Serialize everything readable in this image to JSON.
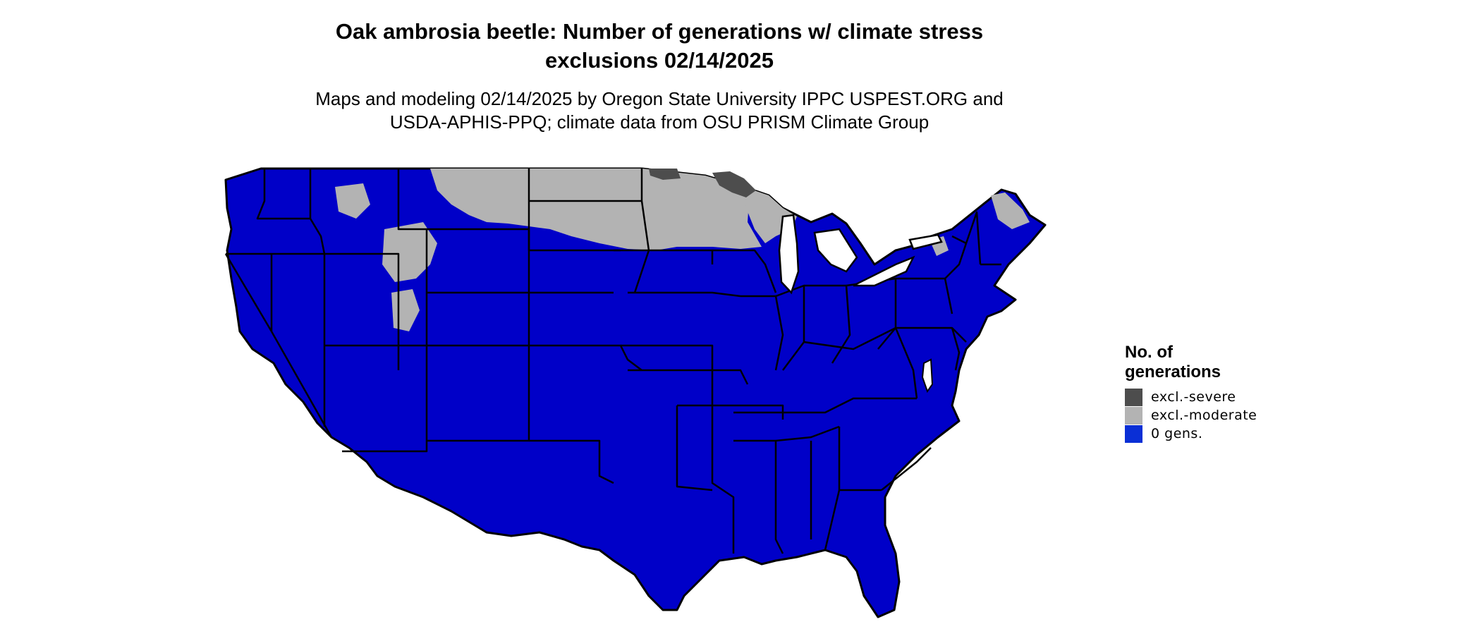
{
  "header": {
    "title_line1": "Oak ambrosia beetle: Number of generations w/ climate stress",
    "title_line2": "exclusions 02/14/2025",
    "subtitle_line1": "Maps and modeling 02/14/2025 by Oregon State University IPPC USPEST.ORG and",
    "subtitle_line2": "USDA-APHIS-PPQ; climate data from OSU PRISM Climate Group"
  },
  "map": {
    "region": "contiguous-united-states",
    "land_color": "#0000c8",
    "border_color": "#000000",
    "zones": [
      {
        "category": "excl.-severe",
        "color": "#4d4d4d",
        "areas": [
          "northern-minnesota-arrowhead",
          "northern-minnesota-border"
        ]
      },
      {
        "category": "excl.-moderate",
        "color": "#b3b3b3",
        "areas": [
          "north-dakota",
          "minnesota",
          "northern-wisconsin",
          "montana-plains",
          "rocky-mountain-highlands",
          "northern-new-england"
        ]
      },
      {
        "category": "0 gens.",
        "color": "#0000c8",
        "areas": [
          "rest-of-conus"
        ]
      }
    ]
  },
  "legend": {
    "title_line1": "No. of",
    "title_line2": "generations",
    "items": [
      {
        "label": "excl.-severe",
        "color": "#4d4d4d"
      },
      {
        "label": "excl.-moderate",
        "color": "#b3b3b3"
      },
      {
        "label": "0 gens.",
        "color": "#0a2fd6"
      }
    ]
  }
}
